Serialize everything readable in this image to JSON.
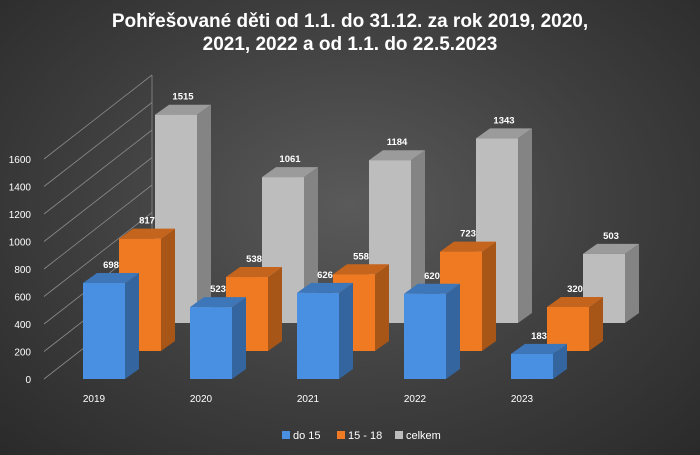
{
  "chart_data": {
    "type": "bar",
    "title_lines": [
      "Pohřešované děti od 1.1. do 31.12. za rok 2019, 2020,",
      "2021, 2022 a od 1.1. do 22.5.2023"
    ],
    "categories": [
      "2019",
      "2020",
      "2021",
      "2022",
      "2023"
    ],
    "series": [
      {
        "name": "do 15",
        "values": [
          698,
          523,
          626,
          620,
          183
        ],
        "color": "#4a90e2"
      },
      {
        "name": "15 - 18",
        "values": [
          817,
          538,
          558,
          723,
          320
        ],
        "color": "#f07a22"
      },
      {
        "name": "celkem",
        "values": [
          1515,
          1061,
          1184,
          1343,
          503
        ],
        "color": "#bdbdbd"
      }
    ],
    "yticks": [
      0,
      200,
      400,
      600,
      800,
      1000,
      1200,
      1400,
      1600
    ],
    "ylim": [
      0,
      1600
    ],
    "legend_position": "bottom",
    "grid": true
  }
}
